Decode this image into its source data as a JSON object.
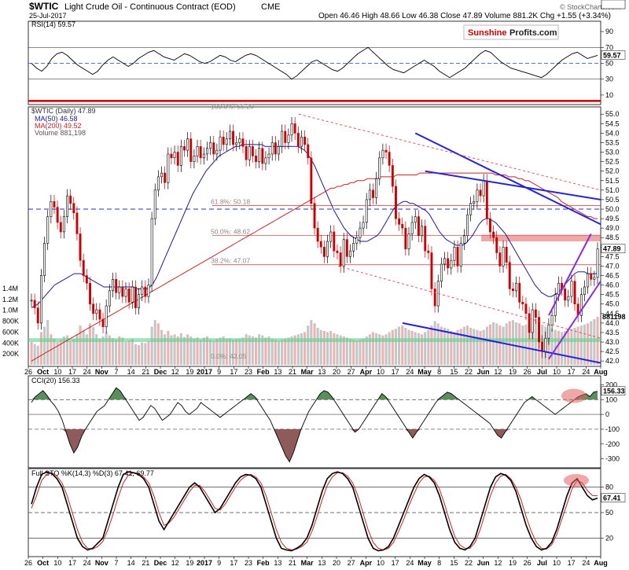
{
  "header": {
    "symbol": "$WTIC",
    "name": "Light Crude Oil - Continuous Contract (EOD)",
    "exchange": "CME",
    "date": "25-Jul-2017",
    "ohlc": "Open 46.46  High 48.66  Low 46.38  Close 47.89  Volume 881.2K  Chg +1.55 (+3.34%)",
    "credit": "© StockCharts.com",
    "logo_left": "Sunshine",
    "logo_right": "Profits.com"
  },
  "colors": {
    "price_up": "#000000",
    "price_down": "#cc0000",
    "ma50": "#1a1a9a",
    "ma200": "#cc2222",
    "volume": "#b8b8b8",
    "trend_blue": "#2222dd",
    "channel_purple": "#8a2be2",
    "support_green": "#5fd08a",
    "resistance_red": "#cc0000"
  },
  "x_axis": {
    "ticks": [
      "26",
      "Oct",
      "10",
      "17",
      "24",
      "Nov",
      "7",
      "14",
      "21",
      "Dec",
      "12",
      "19",
      "2017",
      "9",
      "17",
      "23",
      "Feb",
      "13",
      "21",
      "Mar",
      "13",
      "20",
      "27",
      "Apr",
      "10",
      "17",
      "24",
      "May",
      "8",
      "15",
      "22",
      "Jun",
      "12",
      "19",
      "26",
      "Jul",
      "10",
      "17",
      "24",
      "Aug"
    ]
  },
  "chart_data": [
    {
      "type": "line",
      "panel": "rsi",
      "title": "RSI(14) 59.57",
      "last_value": "59.57",
      "y_ticks": [
        "90",
        "70",
        "50",
        "30",
        "10"
      ],
      "ylim": [
        0,
        100
      ],
      "reference_lines": [
        70,
        50,
        30
      ],
      "values": [
        50,
        44,
        40,
        46,
        56,
        62,
        64,
        60,
        54,
        48,
        44,
        40,
        36,
        40,
        48,
        54,
        58,
        54,
        50,
        46,
        50,
        56,
        60,
        64,
        66,
        62,
        58,
        56,
        54,
        58,
        62,
        60,
        56,
        52,
        50,
        52,
        56,
        60,
        58,
        54,
        52,
        56,
        60,
        62,
        60,
        56,
        52,
        48,
        44,
        40,
        36,
        30,
        34,
        40,
        46,
        52,
        54,
        50,
        46,
        42,
        40,
        44,
        50,
        56,
        62,
        66,
        70,
        64,
        58,
        52,
        46,
        42,
        40,
        38,
        42,
        46,
        50,
        54,
        50,
        46,
        40,
        36,
        32,
        36,
        40,
        44,
        50,
        56,
        62,
        66,
        64,
        58,
        52,
        48,
        44,
        42,
        40,
        38,
        36,
        34,
        32,
        36,
        42,
        48,
        54,
        58,
        62,
        64,
        60,
        56,
        58,
        60
      ]
    },
    {
      "type": "candlestick",
      "panel": "price",
      "title": "$WTIC (Daily) 47.89",
      "legend": [
        "MA(50) 46.58",
        "MA(200) 49.52",
        "Volume 881,198"
      ],
      "y_ticks": [
        "55.0",
        "54.5",
        "54.0",
        "53.5",
        "53.0",
        "52.5",
        "52.0",
        "51.5",
        "51.0",
        "50.5",
        "50.0",
        "49.5",
        "49.0",
        "48.5",
        "48.0",
        "47.5",
        "47.0",
        "46.5",
        "46.0",
        "45.5",
        "45.0",
        "44.5",
        "44.0",
        "43.5",
        "43.0",
        "42.5",
        "42.0"
      ],
      "ylim": [
        41.8,
        55.3
      ],
      "volume_ticks": [
        "1.4M",
        "1.2M",
        "1.0M",
        "800K",
        "600K",
        "400K",
        "200K"
      ],
      "last_labels": {
        "ma200": "49.52",
        "close": "47.89",
        "ma50": "46.58",
        "volume": "881198"
      },
      "fib_levels": [
        {
          "label": "100.0%: 55.20",
          "value": 55.2
        },
        {
          "label": "61.8%: 50.18",
          "value": 50.18
        },
        {
          "label": "50.0%: 48.62",
          "value": 48.62
        },
        {
          "label": "38.2%: 47.07",
          "value": 47.07
        },
        {
          "label": "0.0%: 42.05",
          "value": 42.05
        }
      ],
      "resistance_line": 55.7,
      "dashed_blue_line": 50.0,
      "close": [
        45.2,
        44.8,
        44.0,
        46.5,
        48.2,
        49.6,
        50.4,
        50.1,
        49.3,
        48.8,
        49.6,
        50.7,
        50.3,
        49.8,
        48.7,
        47.3,
        46.5,
        46.1,
        45.0,
        44.5,
        44.7,
        44.2,
        43.8,
        44.9,
        45.7,
        46.3,
        45.6,
        45.9,
        45.4,
        45.8,
        45.1,
        45.9,
        44.8,
        45.5,
        45.9,
        45.4,
        46.0,
        49.5,
        51.0,
        51.7,
        51.9,
        51.4,
        52.9,
        52.7,
        53.0,
        52.3,
        53.3,
        53.1,
        53.7,
        52.5,
        52.8,
        53.3,
        52.7,
        52.9,
        53.2,
        53.5,
        52.9,
        53.1,
        53.8,
        53.4,
        53.7,
        54.1,
        53.4,
        53.5,
        53.7,
        53.3,
        52.6,
        53.3,
        52.8,
        52.5,
        53.2,
        52.4,
        52.7,
        52.9,
        53.5,
        52.9,
        53.3,
        54.1,
        53.5,
        53.9,
        54.5,
        54.0,
        53.3,
        53.8,
        53.4,
        52.7,
        50.3,
        49.0,
        48.3,
        48.0,
        47.5,
        48.3,
        48.8,
        47.8,
        47.7,
        47.0,
        48.4,
        47.5,
        47.8,
        48.2,
        48.5,
        49.0,
        49.3,
        50.5,
        51.0,
        50.6,
        51.6,
        52.7,
        53.1,
        53.0,
        52.3,
        51.2,
        49.5,
        49.2,
        49.0,
        47.9,
        48.7,
        49.3,
        49.6,
        48.6,
        49.1,
        47.8,
        47.7,
        45.8,
        44.9,
        46.2,
        47.1,
        47.4,
        46.9,
        47.3,
        48.0,
        47.0,
        48.2,
        48.6,
        49.7,
        50.3,
        50.4,
        51.0,
        50.7,
        51.5,
        49.5,
        48.8,
        48.5,
        47.7,
        47.0,
        48.0,
        47.2,
        45.8,
        45.7,
        46.1,
        45.1,
        45.0,
        44.5,
        43.5,
        44.7,
        44.3,
        43.0,
        42.5,
        43.2,
        43.9,
        44.4,
        45.5,
        46.1,
        45.8,
        45.2,
        45.4,
        46.2,
        45.0,
        44.4,
        45.5,
        45.9,
        46.6,
        46.3,
        46.4,
        47.9
      ],
      "ma50": [
        44.8,
        44.9,
        45.0,
        45.2,
        45.4,
        45.6,
        45.8,
        46.0,
        46.1,
        46.2,
        46.3,
        46.4,
        46.5,
        46.6,
        46.6,
        46.6,
        46.5,
        46.4,
        46.3,
        46.2,
        46.1,
        46.0,
        45.9,
        45.9,
        45.9,
        45.9,
        45.9,
        45.9,
        45.9,
        45.9,
        45.9,
        45.9,
        45.8,
        45.8,
        45.8,
        45.8,
        45.9,
        46.1,
        46.4,
        46.8,
        47.2,
        47.6,
        48.0,
        48.4,
        48.8,
        49.2,
        49.6,
        50.0,
        50.4,
        50.8,
        51.1,
        51.4,
        51.7,
        52.0,
        52.2,
        52.4,
        52.6,
        52.8,
        52.9,
        53.0,
        53.1,
        53.2,
        53.3,
        53.3,
        53.4,
        53.4,
        53.4,
        53.4,
        53.4,
        53.4,
        53.4,
        53.3,
        53.3,
        53.3,
        53.3,
        53.3,
        53.3,
        53.3,
        53.3,
        53.3,
        53.3,
        53.3,
        53.2,
        53.1,
        52.9,
        52.6,
        52.3,
        51.9,
        51.5,
        51.1,
        50.7,
        50.3,
        49.9,
        49.6,
        49.3,
        49.0,
        48.8,
        48.6,
        48.5,
        48.4,
        48.3,
        48.3,
        48.3,
        48.4,
        48.5,
        48.6,
        48.8,
        49.1,
        49.4,
        49.7,
        50.0,
        50.2,
        50.3,
        50.4,
        50.4,
        50.3,
        50.3,
        50.2,
        50.1,
        50.0,
        49.9,
        49.7,
        49.4,
        49.1,
        48.8,
        48.6,
        48.4,
        48.3,
        48.2,
        48.1,
        48.1,
        48.1,
        48.2,
        48.4,
        48.6,
        48.9,
        49.2,
        49.4,
        49.5,
        49.5,
        49.4,
        49.3,
        49.1,
        48.9,
        48.7,
        48.4,
        48.1,
        47.8,
        47.5,
        47.2,
        46.9,
        46.6,
        46.3,
        46.0,
        45.8,
        45.6,
        45.5,
        45.4,
        45.4,
        45.5,
        45.6,
        45.8,
        46.0,
        46.2,
        46.4,
        46.6,
        46.7,
        46.7,
        46.7,
        46.6,
        46.6,
        46.6,
        46.6
      ],
      "ma200": [
        42.0,
        42.1,
        42.2,
        42.3,
        42.4,
        42.5,
        42.6,
        42.7,
        42.8,
        42.9,
        43.0,
        43.1,
        43.2,
        43.3,
        43.4,
        43.5,
        43.6,
        43.7,
        43.8,
        43.9,
        44.0,
        44.1,
        44.2,
        44.3,
        44.4,
        44.5,
        44.6,
        44.7,
        44.8,
        44.9,
        45.0,
        45.1,
        45.2,
        45.3,
        45.4,
        45.5,
        45.6,
        45.7,
        45.8,
        45.9,
        46.0,
        46.1,
        46.2,
        46.3,
        46.4,
        46.5,
        46.6,
        46.7,
        46.8,
        46.9,
        47.0,
        47.1,
        47.2,
        47.3,
        47.4,
        47.5,
        47.6,
        47.7,
        47.8,
        47.9,
        48.0,
        48.1,
        48.2,
        48.3,
        48.4,
        48.5,
        48.6,
        48.7,
        48.8,
        48.9,
        49.0,
        49.1,
        49.2,
        49.3,
        49.4,
        49.5,
        49.6,
        49.7,
        49.8,
        49.9,
        50.0,
        50.1,
        50.2,
        50.3,
        50.4,
        50.5,
        50.6,
        50.7,
        50.8,
        50.9,
        51.0,
        51.1,
        51.1,
        51.2,
        51.2,
        51.3,
        51.3,
        51.4,
        51.4,
        51.5,
        51.5,
        51.5,
        51.6,
        51.6,
        51.6,
        51.6,
        51.7,
        51.7,
        51.7,
        51.7,
        51.7,
        51.8,
        51.8,
        51.8,
        51.8,
        51.8,
        51.8,
        51.8,
        51.9,
        51.9,
        51.9,
        51.9,
        51.9,
        51.9,
        51.9,
        51.9,
        51.9,
        51.9,
        51.9,
        51.9,
        51.9,
        51.9,
        51.9,
        51.9,
        51.9,
        51.9,
        51.9,
        51.9,
        51.9,
        51.9,
        51.9,
        51.8,
        51.8,
        51.8,
        51.8,
        51.7,
        51.7,
        51.7,
        51.6,
        51.6,
        51.5,
        51.5,
        51.4,
        51.3,
        51.2,
        51.1,
        51.0,
        50.9,
        50.8,
        50.7,
        50.6,
        50.4,
        50.3,
        50.2,
        50.1,
        50.0,
        49.9,
        49.8,
        49.7,
        49.6,
        49.6,
        49.5,
        49.5
      ],
      "volume_k": [
        420,
        380,
        350,
        600,
        700,
        820,
        560,
        480,
        420,
        460,
        520,
        540,
        430,
        470,
        560,
        720,
        640,
        560,
        760,
        690,
        560,
        480,
        520,
        600,
        540,
        490,
        460,
        520,
        500,
        420,
        450,
        480,
        380,
        360,
        410,
        400,
        430,
        700,
        820,
        760,
        640,
        560,
        620,
        540,
        560,
        520,
        580,
        510,
        560,
        520,
        480,
        500,
        460,
        500,
        520,
        460,
        440,
        480,
        500,
        520,
        480,
        490,
        460,
        470,
        480,
        500,
        560,
        540,
        520,
        500,
        560,
        540,
        500,
        520,
        480,
        460,
        440,
        460,
        480,
        500,
        520,
        540,
        560,
        580,
        600,
        720,
        820,
        760,
        680,
        640,
        620,
        600,
        620,
        580,
        560,
        540,
        520,
        500,
        480,
        460,
        440,
        460,
        480,
        520,
        560,
        600,
        580,
        560,
        540,
        560,
        600,
        640,
        660,
        700,
        720,
        680,
        640,
        620,
        600,
        580,
        560,
        600,
        640,
        720,
        800,
        760,
        700,
        680,
        660,
        620,
        600,
        640,
        660,
        700,
        720,
        680,
        660,
        640,
        620,
        640,
        700,
        740,
        780,
        760,
        720,
        700,
        760,
        800,
        820,
        780,
        760,
        720,
        740,
        760,
        800,
        840,
        780,
        740,
        700,
        720,
        660,
        640,
        620,
        600,
        620,
        640,
        660,
        680,
        700,
        720,
        740,
        760,
        800,
        840,
        881
      ]
    },
    {
      "type": "line",
      "panel": "cci",
      "title": "CCI(20) 156.33",
      "last_value": "156.33",
      "y_ticks": [
        "200",
        "100",
        "0",
        "-100",
        "-200",
        "-300"
      ],
      "ylim": [
        -350,
        250
      ],
      "reference_lines": [
        100,
        0,
        -100
      ],
      "values": [
        80,
        120,
        140,
        160,
        130,
        90,
        60,
        20,
        -40,
        -120,
        -200,
        -260,
        -220,
        -150,
        -100,
        -60,
        -20,
        20,
        40,
        60,
        100,
        140,
        180,
        160,
        120,
        80,
        40,
        0,
        -40,
        -20,
        20,
        60,
        40,
        0,
        -40,
        -20,
        0,
        40,
        80,
        60,
        20,
        0,
        20,
        40,
        80,
        60,
        40,
        20,
        0,
        -20,
        0,
        20,
        40,
        60,
        80,
        100,
        120,
        140,
        120,
        80,
        40,
        0,
        -40,
        -100,
        -160,
        -220,
        -280,
        -320,
        -260,
        -180,
        -100,
        -40,
        20,
        60,
        100,
        140,
        160,
        150,
        120,
        80,
        40,
        0,
        -40,
        -80,
        -120,
        -100,
        -60,
        -20,
        20,
        60,
        100,
        140,
        120,
        80,
        40,
        0,
        -40,
        -80,
        -120,
        -160,
        -120,
        -80,
        -40,
        0,
        40,
        80,
        110,
        130,
        150,
        140,
        120,
        100,
        80,
        60,
        40,
        20,
        0,
        -20,
        -40,
        -60,
        -100,
        -140,
        -160,
        -120,
        -80,
        -40,
        0,
        40,
        80,
        100,
        120,
        100,
        80,
        60,
        40,
        20,
        0,
        20,
        40,
        60,
        80,
        100,
        120,
        130,
        140,
        120,
        150,
        156
      ]
    },
    {
      "type": "line",
      "panel": "stochastic",
      "title": "Full STO %K(14,3) %D(3) 67.41, 69.77",
      "k_label": "67.41",
      "d_label": "69.77",
      "y_ticks": [
        "80",
        "50",
        "20"
      ],
      "ylim": [
        0,
        100
      ],
      "reference_lines": [
        80,
        50,
        20
      ],
      "k": [
        60,
        80,
        95,
        98,
        96,
        90,
        80,
        60,
        40,
        20,
        10,
        6,
        8,
        14,
        20,
        40,
        60,
        80,
        95,
        98,
        97,
        95,
        90,
        80,
        60,
        40,
        30,
        40,
        50,
        60,
        70,
        80,
        85,
        80,
        70,
        60,
        50,
        55,
        65,
        75,
        85,
        92,
        95,
        94,
        90,
        80,
        60,
        40,
        20,
        8,
        6,
        5,
        8,
        12,
        20,
        35,
        55,
        75,
        90,
        96,
        98,
        96,
        90,
        80,
        60,
        40,
        20,
        8,
        5,
        6,
        10,
        20,
        35,
        50,
        65,
        80,
        90,
        95,
        92,
        85,
        70,
        50,
        30,
        15,
        8,
        6,
        10,
        20,
        40,
        60,
        80,
        92,
        96,
        94,
        88,
        75,
        55,
        35,
        20,
        10,
        6,
        8,
        15,
        30,
        50,
        70,
        85,
        90,
        80,
        70,
        65,
        67
      ],
      "d": [
        55,
        70,
        88,
        95,
        97,
        93,
        85,
        70,
        50,
        30,
        15,
        8,
        7,
        10,
        16,
        30,
        48,
        68,
        85,
        94,
        97,
        96,
        92,
        85,
        70,
        50,
        35,
        38,
        45,
        55,
        65,
        75,
        82,
        82,
        75,
        65,
        55,
        53,
        60,
        70,
        80,
        88,
        93,
        95,
        92,
        85,
        70,
        50,
        30,
        15,
        8,
        6,
        7,
        10,
        15,
        28,
        45,
        65,
        82,
        92,
        97,
        97,
        93,
        85,
        70,
        50,
        30,
        15,
        8,
        6,
        8,
        15,
        28,
        42,
        58,
        72,
        85,
        92,
        93,
        88,
        78,
        60,
        40,
        22,
        12,
        8,
        8,
        15,
        30,
        50,
        70,
        85,
        93,
        95,
        90,
        80,
        65,
        45,
        28,
        15,
        8,
        7,
        12,
        24,
        42,
        60,
        78,
        88,
        85,
        76,
        70,
        69.77
      ]
    }
  ]
}
